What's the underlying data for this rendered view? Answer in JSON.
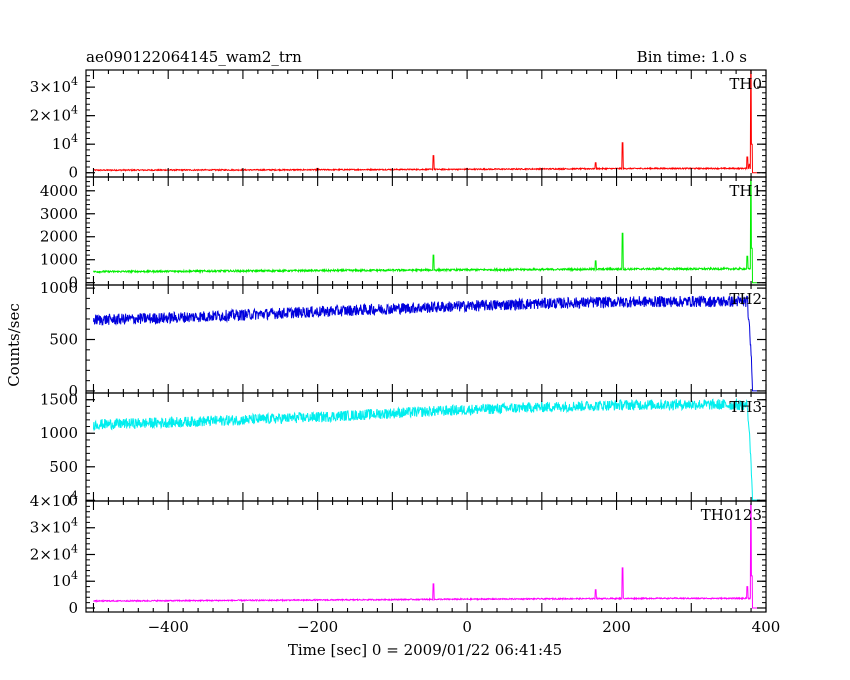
{
  "header": {
    "title": "ae090122064145_wam2_trn",
    "bin_time": "Bin time: 1.0 s"
  },
  "chart_data": {
    "type": "line",
    "xlabel": "Time [sec] 0 = 2009/01/22 06:41:45",
    "ylabel": "Counts/sec",
    "xlim": [
      -510,
      400
    ],
    "x_ticks": [
      -400,
      -200,
      0,
      200,
      400
    ],
    "x_tick_labels": [
      "−400",
      "−200",
      "0",
      "200",
      "400"
    ],
    "grid": false,
    "legend": "none",
    "panels": [
      {
        "name": "TH0",
        "color": "#ff0000",
        "ylim": [
          -1500,
          36000
        ],
        "y_ticks": [
          0,
          10000,
          20000,
          30000
        ],
        "y_tick_labels": [
          {
            "base": "0",
            "exp": ""
          },
          {
            "base": "10",
            "exp": "4"
          },
          {
            "base": "2×10",
            "exp": "4"
          },
          {
            "base": "3×10",
            "exp": "4"
          }
        ],
        "x": [
          -500,
          -250,
          0,
          250,
          375,
          378,
          380,
          382,
          383
        ],
        "y": [
          900,
          1000,
          1200,
          1500,
          1500,
          1500,
          1500,
          0,
          0
        ],
        "noise": 200,
        "spikes": [
          [
            -200,
            1500
          ],
          [
            -45,
            6000
          ],
          [
            0,
            1500
          ],
          [
            172,
            3500
          ],
          [
            208,
            10500
          ],
          [
            375,
            5500
          ],
          [
            378,
            3000
          ],
          [
            380,
            36000
          ],
          [
            381,
            10000
          ]
        ],
        "cutoff": 382
      },
      {
        "name": "TH1",
        "color": "#00ee00",
        "ylim": [
          -100,
          4600
        ],
        "y_ticks": [
          0,
          1000,
          2000,
          3000,
          4000
        ],
        "y_tick_labels": [
          {
            "base": "0",
            "exp": ""
          },
          {
            "base": "1000",
            "exp": ""
          },
          {
            "base": "2000",
            "exp": ""
          },
          {
            "base": "3000",
            "exp": ""
          },
          {
            "base": "4000",
            "exp": ""
          }
        ],
        "x": [
          -500,
          -250,
          0,
          250,
          375,
          380,
          382,
          383
        ],
        "y": [
          480,
          520,
          560,
          600,
          600,
          600,
          0,
          0
        ],
        "noise": 40,
        "spikes": [
          [
            -45,
            1200
          ],
          [
            172,
            950
          ],
          [
            208,
            2150
          ],
          [
            375,
            1150
          ],
          [
            380,
            4500
          ],
          [
            381,
            1500
          ]
        ],
        "cutoff": 382
      },
      {
        "name": "TH2",
        "color": "#0000dd",
        "ylim": [
          -20,
          1030
        ],
        "y_ticks": [
          0,
          500,
          1000
        ],
        "y_tick_labels": [
          {
            "base": "0",
            "exp": ""
          },
          {
            "base": "500",
            "exp": ""
          },
          {
            "base": "1000",
            "exp": ""
          }
        ],
        "x": [
          -500,
          -400,
          -300,
          -200,
          -100,
          0,
          100,
          200,
          300,
          375,
          380,
          382
        ],
        "y": [
          690,
          710,
          740,
          770,
          800,
          825,
          850,
          865,
          870,
          870,
          380,
          0
        ],
        "noise": 55,
        "spikes": [],
        "cutoff": 382
      },
      {
        "name": "TH3",
        "color": "#00eeee",
        "ylim": [
          -10,
          1600
        ],
        "y_ticks": [
          0,
          500,
          1000,
          1500
        ],
        "y_tick_labels": [
          {
            "base": "0",
            "exp": ""
          },
          {
            "base": "500",
            "exp": ""
          },
          {
            "base": "1000",
            "exp": ""
          },
          {
            "base": "1500",
            "exp": ""
          }
        ],
        "x": [
          -500,
          -400,
          -300,
          -200,
          -100,
          0,
          100,
          200,
          300,
          375,
          380,
          382
        ],
        "y": [
          1130,
          1160,
          1200,
          1240,
          1300,
          1350,
          1390,
          1420,
          1430,
          1420,
          600,
          0
        ],
        "noise": 80,
        "spikes": [],
        "cutoff": 382
      },
      {
        "name": "TH0123",
        "color": "#ff00ff",
        "ylim": [
          -1500,
          40000
        ],
        "y_ticks": [
          0,
          10000,
          20000,
          30000,
          40000
        ],
        "y_tick_labels": [
          {
            "base": "0",
            "exp": ""
          },
          {
            "base": "10",
            "exp": "4"
          },
          {
            "base": "2×10",
            "exp": "4"
          },
          {
            "base": "3×10",
            "exp": "4"
          },
          {
            "base": "4×10",
            "exp": "4"
          }
        ],
        "x": [
          -500,
          -250,
          0,
          250,
          375,
          380,
          382,
          383
        ],
        "y": [
          2600,
          2900,
          3300,
          3600,
          3600,
          3600,
          0,
          0
        ],
        "noise": 220,
        "spikes": [
          [
            -45,
            9000
          ],
          [
            172,
            6800
          ],
          [
            208,
            15000
          ],
          [
            375,
            8000
          ],
          [
            380,
            39000
          ],
          [
            381,
            12000
          ]
        ],
        "cutoff": 382
      }
    ]
  }
}
